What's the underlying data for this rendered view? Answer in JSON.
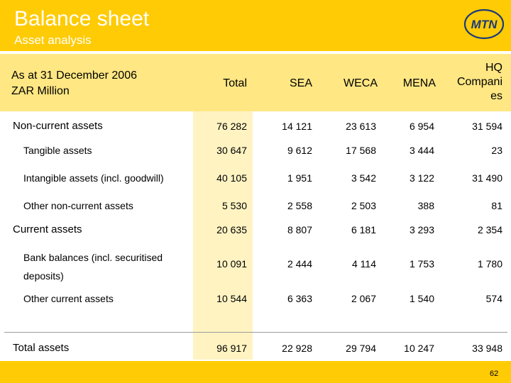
{
  "header": {
    "title": "Balance sheet",
    "subtitle": "Asset analysis",
    "logo_text": "MTN"
  },
  "table": {
    "header_label_line1": "As at 31 December 2006",
    "header_label_line2": "ZAR Million",
    "columns": [
      "Total",
      "SEA",
      "WECA",
      "MENA",
      "HQ Compani es"
    ],
    "hq_lines": [
      "HQ",
      "Compani",
      "es"
    ],
    "rows": [
      {
        "label": "Non-current assets",
        "values": [
          "76 282",
          "14 121",
          "23 613",
          "6 954",
          "31 594"
        ]
      },
      {
        "label": "Tangible assets",
        "values": [
          "30 647",
          "9 612",
          "17 568",
          "3 444",
          "23"
        ]
      },
      {
        "label": "Intangible assets (incl. goodwill)",
        "values": [
          "40 105",
          "1 951",
          "3 542",
          "3 122",
          "31 490"
        ]
      },
      {
        "label": "Other non-current assets",
        "values": [
          "5 530",
          "2 558",
          "2 503",
          "388",
          "81"
        ]
      },
      {
        "label": "Current assets",
        "values": [
          "20 635",
          "8 807",
          "6 181",
          "3 293",
          "2 354"
        ]
      },
      {
        "label": "Bank balances (incl. securitised",
        "label2": "deposits)",
        "values": [
          "10 091",
          "2 444",
          "4 114",
          "1 753",
          "1 780"
        ]
      },
      {
        "label": "Other current assets",
        "values": [
          "10 544",
          "6 363",
          "2 067",
          "1 540",
          "574"
        ]
      },
      {
        "label": "Total assets",
        "values": [
          "96 917",
          "22 928",
          "29 794",
          "10 247",
          "33 948"
        ]
      }
    ]
  },
  "footer": {
    "page_number": "62"
  },
  "colors": {
    "brand_yellow": "#ffcb05",
    "header_band": "#ffe783",
    "total_column_band": "#fff3c2"
  }
}
